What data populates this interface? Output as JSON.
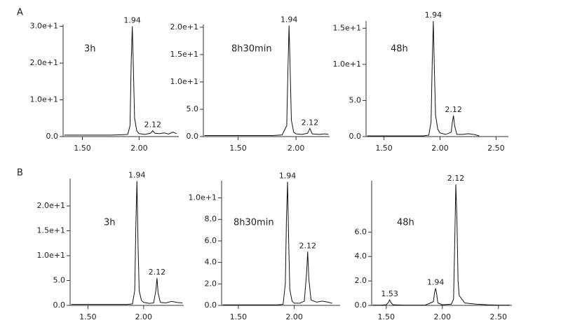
{
  "row_labels": [
    "A",
    "B"
  ],
  "chart_data": [
    {
      "type": "line",
      "title": "3h",
      "x": [
        1.34,
        1.45,
        1.55,
        1.65,
        1.75,
        1.85,
        1.9,
        1.92,
        1.93,
        1.94,
        1.95,
        1.96,
        1.98,
        2.0,
        2.05,
        2.1,
        2.12,
        2.14,
        2.18,
        2.22,
        2.26,
        2.3,
        2.33
      ],
      "values": [
        0.4,
        0.4,
        0.4,
        0.4,
        0.4,
        0.5,
        0.6,
        3,
        20,
        30,
        18,
        5,
        1.5,
        0.8,
        0.6,
        0.9,
        1.6,
        0.9,
        0.8,
        1.0,
        0.7,
        1.2,
        0.8
      ],
      "color": "#111111",
      "xlim": [
        1.33,
        2.35
      ],
      "ylim": [
        0,
        30.5
      ],
      "xticks": [
        {
          "value": 1.5,
          "label": "1.50"
        },
        {
          "value": 2.0,
          "label": "2.00"
        }
      ],
      "yticks": [
        {
          "value": 0,
          "label": "0.0"
        },
        {
          "value": 10,
          "label": "1.0e+1"
        },
        {
          "value": 20,
          "label": "2.0e+1"
        },
        {
          "value": 30,
          "label": "3.0e+1"
        }
      ],
      "annotations": [
        {
          "text": "1.94",
          "x": 1.94,
          "y": 30
        },
        {
          "text": "2.12",
          "x": 2.12,
          "y": 1.6
        }
      ]
    },
    {
      "type": "line",
      "title": "8h30min",
      "x": [
        1.21,
        1.3,
        1.4,
        1.5,
        1.6,
        1.7,
        1.8,
        1.88,
        1.92,
        1.93,
        1.94,
        1.95,
        1.96,
        1.98,
        2.0,
        2.05,
        2.1,
        2.12,
        2.14,
        2.2,
        2.25,
        2.28
      ],
      "values": [
        0.2,
        0.2,
        0.2,
        0.2,
        0.2,
        0.2,
        0.2,
        0.3,
        2,
        12,
        20.3,
        12,
        3,
        0.8,
        0.5,
        0.4,
        0.6,
        1.5,
        0.5,
        0.4,
        0.5,
        0.4
      ],
      "color": "#111111",
      "xlim": [
        1.2,
        2.29
      ],
      "ylim": [
        0,
        20.5
      ],
      "xticks": [
        {
          "value": 1.5,
          "label": "1.50"
        },
        {
          "value": 2.0,
          "label": "2.00"
        }
      ],
      "yticks": [
        {
          "value": 0,
          "label": "0.0"
        },
        {
          "value": 5,
          "label": "5.0"
        },
        {
          "value": 10,
          "label": "1.0e+1"
        },
        {
          "value": 15,
          "label": "1.5e+1"
        },
        {
          "value": 20,
          "label": "2.0e+1"
        }
      ],
      "annotations": [
        {
          "text": "1.94",
          "x": 1.94,
          "y": 20.3
        },
        {
          "text": "2.12",
          "x": 2.12,
          "y": 1.5
        }
      ]
    },
    {
      "type": "line",
      "title": "48h",
      "x": [
        1.35,
        1.45,
        1.55,
        1.65,
        1.75,
        1.85,
        1.9,
        1.92,
        1.93,
        1.94,
        1.95,
        1.96,
        1.98,
        2.0,
        2.05,
        2.1,
        2.11,
        2.12,
        2.13,
        2.15,
        2.2,
        2.25,
        2.3,
        2.35
      ],
      "values": [
        0.1,
        0.1,
        0.1,
        0.1,
        0.1,
        0.1,
        0.2,
        2,
        10,
        16,
        9,
        3,
        1,
        0.5,
        0.3,
        0.6,
        2,
        2.9,
        1.5,
        0.3,
        0.3,
        0.4,
        0.3,
        0.1
      ],
      "color": "#111111",
      "xlim": [
        1.34,
        2.61
      ],
      "ylim": [
        0,
        16
      ],
      "xticks": [
        {
          "value": 1.5,
          "label": "1.50"
        },
        {
          "value": 2.0,
          "label": "2.00"
        },
        {
          "value": 2.5,
          "label": "2.50"
        }
      ],
      "yticks": [
        {
          "value": 0,
          "label": "0.0"
        },
        {
          "value": 5,
          "label": "5.0"
        },
        {
          "value": 10,
          "label": "1.0e+1"
        },
        {
          "value": 15,
          "label": "1.5e+1"
        }
      ],
      "annotations": [
        {
          "text": "1.94",
          "x": 1.94,
          "y": 16
        },
        {
          "text": "2.12",
          "x": 2.12,
          "y": 2.9
        }
      ]
    },
    {
      "type": "line",
      "title": "3h",
      "x": [
        1.35,
        1.45,
        1.55,
        1.65,
        1.75,
        1.85,
        1.9,
        1.92,
        1.93,
        1.94,
        1.95,
        1.96,
        1.98,
        2.0,
        2.05,
        2.09,
        2.11,
        2.12,
        2.13,
        2.15,
        2.2,
        2.25,
        2.3,
        2.35
      ],
      "values": [
        0.2,
        0.2,
        0.2,
        0.2,
        0.2,
        0.2,
        0.3,
        3,
        16,
        25,
        12,
        3,
        1,
        0.6,
        0.4,
        0.5,
        3,
        5.5,
        2.5,
        0.6,
        0.5,
        0.8,
        0.6,
        0.5
      ],
      "color": "#111111",
      "xlim": [
        1.34,
        2.36
      ],
      "ylim": [
        0,
        25.5
      ],
      "xticks": [
        {
          "value": 1.5,
          "label": "1.50"
        },
        {
          "value": 2.0,
          "label": "2.00"
        }
      ],
      "yticks": [
        {
          "value": 0,
          "label": "0.0"
        },
        {
          "value": 5,
          "label": "5.0"
        },
        {
          "value": 10,
          "label": "1.0e+1"
        },
        {
          "value": 15,
          "label": "1.5e+1"
        },
        {
          "value": 20,
          "label": "2.0e+1"
        }
      ],
      "annotations": [
        {
          "text": "1.94",
          "x": 1.94,
          "y": 25
        },
        {
          "text": "2.12",
          "x": 2.12,
          "y": 5.5
        }
      ]
    },
    {
      "type": "line",
      "title": "8h30min",
      "x": [
        1.36,
        1.45,
        1.55,
        1.65,
        1.75,
        1.85,
        1.9,
        1.92,
        1.93,
        1.94,
        1.95,
        1.96,
        1.98,
        2.0,
        2.05,
        2.09,
        2.11,
        2.12,
        2.13,
        2.15,
        2.2,
        2.25,
        2.3,
        2.34
      ],
      "values": [
        0.05,
        0.05,
        0.05,
        0.05,
        0.05,
        0.05,
        0.1,
        2,
        8,
        11.5,
        6,
        1.5,
        0.4,
        0.2,
        0.2,
        0.4,
        3,
        5,
        2.5,
        0.5,
        0.3,
        0.4,
        0.3,
        0.2
      ],
      "color": "#111111",
      "xlim": [
        1.35,
        2.41
      ],
      "ylim": [
        0,
        11.6
      ],
      "xticks": [
        {
          "value": 1.5,
          "label": "1.50"
        },
        {
          "value": 2.0,
          "label": "2.00"
        }
      ],
      "yticks": [
        {
          "value": 0,
          "label": "0.0"
        },
        {
          "value": 2,
          "label": "2.0"
        },
        {
          "value": 4,
          "label": "4.0"
        },
        {
          "value": 6,
          "label": "6.0"
        },
        {
          "value": 8,
          "label": "8.0"
        },
        {
          "value": 10,
          "label": "1.0e+1"
        }
      ],
      "annotations": [
        {
          "text": "1.94",
          "x": 1.94,
          "y": 11.5
        },
        {
          "text": "2.12",
          "x": 2.12,
          "y": 5
        }
      ]
    },
    {
      "type": "line",
      "title": "48h",
      "x": [
        1.38,
        1.45,
        1.5,
        1.52,
        1.53,
        1.54,
        1.56,
        1.65,
        1.75,
        1.85,
        1.92,
        1.93,
        1.94,
        1.95,
        1.96,
        2.0,
        2.08,
        2.1,
        2.11,
        2.12,
        2.13,
        2.14,
        2.15,
        2.2,
        2.3,
        2.4,
        2.5,
        2.6
      ],
      "values": [
        0.02,
        0.02,
        0.05,
        0.25,
        0.45,
        0.25,
        0.05,
        0.02,
        0.02,
        0.03,
        0.3,
        1.0,
        1.4,
        0.9,
        0.2,
        0.05,
        0.1,
        0.5,
        5,
        9.9,
        7,
        2,
        0.8,
        0.2,
        0.1,
        0.05,
        0.02,
        0.02
      ],
      "color": "#111111",
      "xlim": [
        1.37,
        2.62
      ],
      "ylim": [
        0,
        10.2
      ],
      "xticks": [
        {
          "value": 1.5,
          "label": "1.50"
        },
        {
          "value": 2.0,
          "label": "2.00"
        },
        {
          "value": 2.5,
          "label": "2.50"
        }
      ],
      "yticks": [
        {
          "value": 0,
          "label": "0.0"
        },
        {
          "value": 2,
          "label": "2.0"
        },
        {
          "value": 4,
          "label": "4.0"
        },
        {
          "value": 6,
          "label": "6.0"
        }
      ],
      "annotations": [
        {
          "text": "1.53",
          "x": 1.53,
          "y": 0.45
        },
        {
          "text": "1.94",
          "x": 1.94,
          "y": 1.4
        },
        {
          "text": "2.12",
          "x": 2.12,
          "y": 9.9
        }
      ]
    }
  ]
}
